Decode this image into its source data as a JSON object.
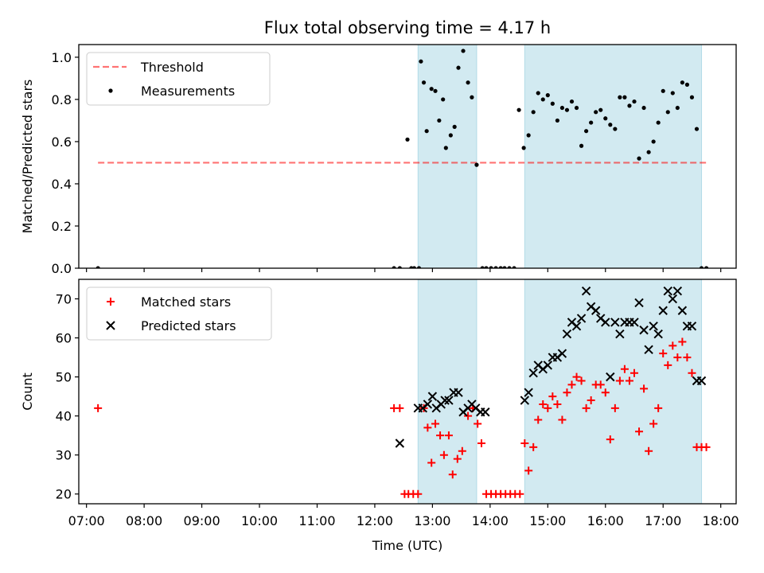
{
  "figure_title": "Flux total observing time = 4.17 h",
  "colors": {
    "shade": "#add8e6",
    "threshold": "#ff0000",
    "measurements": "#000000",
    "matched": "#ff0000",
    "predicted": "#000000"
  },
  "chart_data": [
    {
      "type": "scatter",
      "title": "",
      "xlabel": "",
      "ylabel": "Matched/Predicted stars",
      "xlim": [
        "06:52",
        "18:16"
      ],
      "ylim": [
        0.0,
        1.06
      ],
      "yticks": [
        "0.0",
        "0.2",
        "0.4",
        "0.6",
        "0.8",
        "1.0"
      ],
      "legend_position": "top-left",
      "shaded_intervals": [
        [
          "12:45",
          "13:46"
        ],
        [
          "14:36",
          "17:40"
        ]
      ],
      "series": [
        {
          "name": "Threshold",
          "style": "dashed-line",
          "x": [
            "07:12",
            "17:47"
          ],
          "y": [
            0.5,
            0.5
          ]
        },
        {
          "name": "Measurements",
          "style": "dot",
          "x": [
            "07:12",
            "12:20",
            "12:26",
            "12:34",
            "12:38",
            "12:41",
            "12:46",
            "12:48",
            "12:51",
            "12:54",
            "12:59",
            "13:03",
            "13:07",
            "13:11",
            "13:14",
            "13:19",
            "13:23",
            "13:27",
            "13:32",
            "13:37",
            "13:41",
            "13:46",
            "13:52",
            "13:56",
            "14:01",
            "14:06",
            "14:11",
            "14:15",
            "14:20",
            "14:25",
            "14:30",
            "14:35",
            "14:40",
            "14:45",
            "14:50",
            "14:55",
            "15:00",
            "15:05",
            "15:10",
            "15:15",
            "15:20",
            "15:25",
            "15:30",
            "15:35",
            "15:40",
            "15:45",
            "15:50",
            "15:55",
            "16:00",
            "16:05",
            "16:10",
            "16:15",
            "16:20",
            "16:25",
            "16:30",
            "16:35",
            "16:40",
            "16:45",
            "16:50",
            "16:55",
            "17:00",
            "17:05",
            "17:10",
            "17:15",
            "17:20",
            "17:25",
            "17:30",
            "17:35",
            "17:40",
            "17:45"
          ],
          "y": [
            0.0,
            0.0,
            0.0,
            0.61,
            0.0,
            0.0,
            0.0,
            0.98,
            0.88,
            0.65,
            0.85,
            0.84,
            0.7,
            0.8,
            0.57,
            0.63,
            0.67,
            0.95,
            1.03,
            0.88,
            0.81,
            0.49,
            0.0,
            0.0,
            0.0,
            0.0,
            0.0,
            0.0,
            0.0,
            0.0,
            0.75,
            0.57,
            0.63,
            0.74,
            0.83,
            0.8,
            0.82,
            0.78,
            0.7,
            0.76,
            0.75,
            0.79,
            0.76,
            0.58,
            0.65,
            0.69,
            0.74,
            0.75,
            0.71,
            0.68,
            0.66,
            0.81,
            0.81,
            0.77,
            0.79,
            0.52,
            0.76,
            0.55,
            0.6,
            0.69,
            0.84,
            0.74,
            0.83,
            0.76,
            0.88,
            0.87,
            0.81,
            0.66,
            0.0,
            0.0
          ]
        }
      ]
    },
    {
      "type": "scatter",
      "title": "",
      "xlabel": "Time (UTC)",
      "ylabel": "Count",
      "xlim": [
        "06:52",
        "18:16"
      ],
      "ylim": [
        17.5,
        75
      ],
      "xticks": [
        "07:00",
        "08:00",
        "09:00",
        "10:00",
        "11:00",
        "12:00",
        "13:00",
        "14:00",
        "15:00",
        "16:00",
        "17:00",
        "18:00"
      ],
      "yticks": [
        "20",
        "30",
        "40",
        "50",
        "60",
        "70"
      ],
      "legend_position": "top-left",
      "shaded_intervals": [
        [
          "12:45",
          "13:46"
        ],
        [
          "14:36",
          "17:40"
        ]
      ],
      "series": [
        {
          "name": "Matched stars",
          "style": "plus",
          "x": [
            "07:12",
            "12:20",
            "12:26",
            "12:31",
            "12:35",
            "12:40",
            "12:45",
            "12:51",
            "12:55",
            "12:59",
            "13:03",
            "13:08",
            "13:12",
            "13:17",
            "13:21",
            "13:26",
            "13:31",
            "13:37",
            "13:42",
            "13:47",
            "13:51",
            "13:56",
            "14:01",
            "14:06",
            "14:11",
            "14:16",
            "14:21",
            "14:26",
            "14:31",
            "14:36",
            "14:40",
            "14:45",
            "14:50",
            "14:55",
            "15:00",
            "15:05",
            "15:10",
            "15:15",
            "15:20",
            "15:25",
            "15:30",
            "15:35",
            "15:40",
            "15:45",
            "15:50",
            "15:55",
            "16:00",
            "16:05",
            "16:10",
            "16:15",
            "16:20",
            "16:25",
            "16:30",
            "16:35",
            "16:40",
            "16:45",
            "16:50",
            "16:55",
            "17:00",
            "17:05",
            "17:10",
            "17:15",
            "17:20",
            "17:25",
            "17:30",
            "17:35",
            "17:40",
            "17:45"
          ],
          "y": [
            42,
            42,
            42,
            20,
            20,
            20,
            20,
            42,
            37,
            28,
            38,
            35,
            30,
            35,
            25,
            29,
            31,
            40,
            42,
            38,
            33,
            20,
            20,
            20,
            20,
            20,
            20,
            20,
            20,
            33,
            26,
            32,
            39,
            43,
            42,
            45,
            43,
            39,
            46,
            48,
            50,
            49,
            42,
            44,
            48,
            48,
            46,
            34,
            42,
            49,
            52,
            49,
            51,
            36,
            47,
            31,
            38,
            42,
            56,
            53,
            58,
            55,
            59,
            55,
            51,
            32,
            32,
            32
          ]
        },
        {
          "name": "Predicted stars",
          "style": "x",
          "x": [
            "12:26",
            "12:45",
            "12:50",
            "12:55",
            "13:00",
            "13:04",
            "13:09",
            "13:13",
            "13:17",
            "13:22",
            "13:27",
            "13:32",
            "13:37",
            "13:41",
            "13:45",
            "13:50",
            "13:55",
            "14:36",
            "14:40",
            "14:45",
            "14:50",
            "14:55",
            "15:00",
            "15:05",
            "15:10",
            "15:15",
            "15:20",
            "15:25",
            "15:30",
            "15:35",
            "15:40",
            "15:45",
            "15:50",
            "15:55",
            "16:00",
            "16:05",
            "16:10",
            "16:15",
            "16:20",
            "16:25",
            "16:30",
            "16:35",
            "16:40",
            "16:45",
            "16:50",
            "16:55",
            "17:00",
            "17:05",
            "17:10",
            "17:15",
            "17:20",
            "17:25",
            "17:30",
            "17:35",
            "17:40"
          ],
          "y": [
            33,
            42,
            42,
            43,
            45,
            42,
            43,
            44,
            44,
            46,
            46,
            41,
            42,
            43,
            42,
            41,
            41,
            44,
            46,
            51,
            53,
            52,
            53,
            55,
            55,
            56,
            61,
            64,
            63,
            65,
            72,
            68,
            67,
            65,
            64,
            50,
            64,
            61,
            64,
            64,
            64,
            69,
            62,
            57,
            63,
            61,
            67,
            72,
            70,
            72,
            67,
            63,
            63,
            49,
            49
          ]
        }
      ]
    }
  ]
}
